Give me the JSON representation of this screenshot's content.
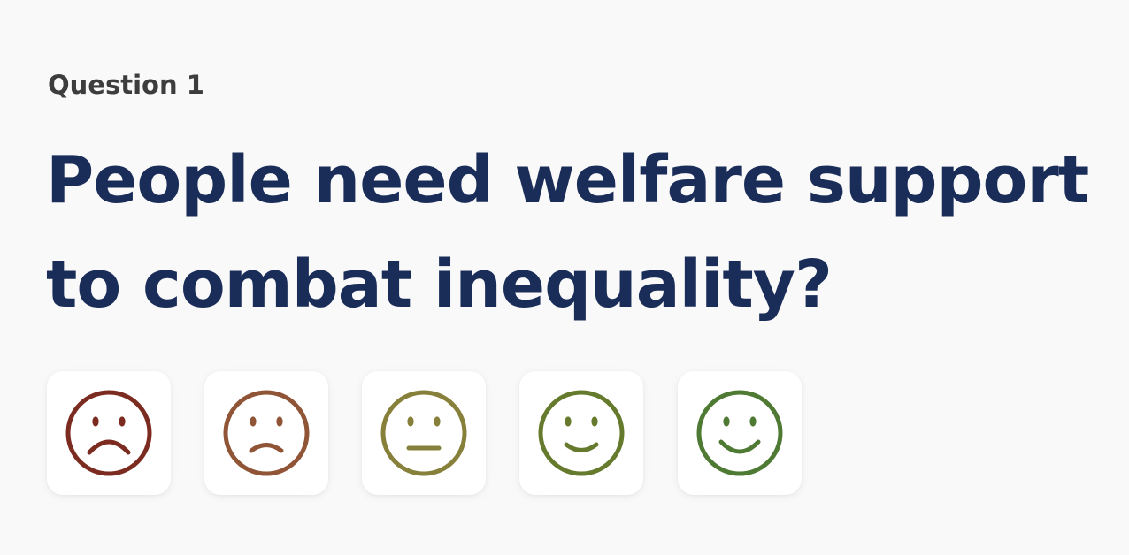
{
  "question": {
    "label": "Question 1",
    "title": "People need welfare support to combat inequality?"
  },
  "ratings": [
    {
      "name": "very-sad",
      "icon": "very-sad-face-icon",
      "color": "#7b2b1f"
    },
    {
      "name": "sad",
      "icon": "sad-face-icon",
      "color": "#8f5536"
    },
    {
      "name": "neutral",
      "icon": "neutral-face-icon",
      "color": "#86803a"
    },
    {
      "name": "happy",
      "icon": "happy-face-icon",
      "color": "#667a2e"
    },
    {
      "name": "very-happy",
      "icon": "very-happy-face-icon",
      "color": "#4e7a33"
    }
  ]
}
